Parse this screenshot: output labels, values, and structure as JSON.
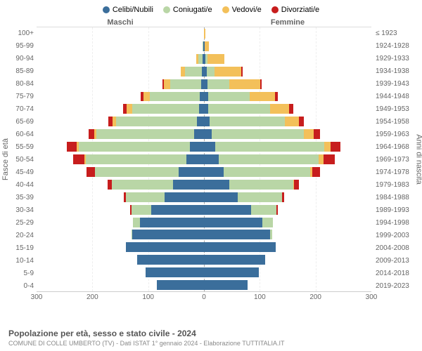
{
  "legend": [
    {
      "label": "Celibi/Nubili",
      "color": "#3b6e9b"
    },
    {
      "label": "Coniugati/e",
      "color": "#b9d6a6"
    },
    {
      "label": "Vedovi/e",
      "color": "#f3c05a"
    },
    {
      "label": "Divorziati/e",
      "color": "#c71d1d"
    }
  ],
  "headers": {
    "male": "Maschi",
    "female": "Femmine"
  },
  "y_label_left": "Fasce di età",
  "y_label_right": "Anni di nascita",
  "age_labels": [
    "100+",
    "95-99",
    "90-94",
    "85-89",
    "80-84",
    "75-79",
    "70-74",
    "65-69",
    "60-64",
    "55-59",
    "50-54",
    "45-49",
    "40-44",
    "35-39",
    "30-34",
    "25-29",
    "20-24",
    "15-19",
    "10-14",
    "5-9",
    "0-4"
  ],
  "birth_labels": [
    "≤ 1923",
    "1924-1928",
    "1929-1933",
    "1934-1938",
    "1939-1943",
    "1944-1948",
    "1949-1953",
    "1954-1958",
    "1959-1963",
    "1964-1968",
    "1969-1973",
    "1974-1978",
    "1979-1983",
    "1984-1988",
    "1989-1993",
    "1994-1998",
    "1999-2003",
    "2004-2008",
    "2009-2013",
    "2014-2018",
    "2019-2023"
  ],
  "x_max": 300,
  "x_ticks": [
    300,
    200,
    100,
    0,
    100,
    200,
    300
  ],
  "colors": {
    "celibi": "#3b6e9b",
    "coniugati": "#b9d6a6",
    "vedovi": "#f3c05a",
    "divorziati": "#c71d1d",
    "grid": "#eeeeee",
    "center": "#aaaaaa",
    "text": "#666666"
  },
  "rows": [
    {
      "m": {
        "c": 0,
        "co": 0,
        "v": 0,
        "d": 0
      },
      "f": {
        "c": 0,
        "co": 0,
        "v": 2,
        "d": 0
      }
    },
    {
      "m": {
        "c": 1,
        "co": 1,
        "v": 1,
        "d": 0
      },
      "f": {
        "c": 1,
        "co": 0,
        "v": 8,
        "d": 0
      }
    },
    {
      "m": {
        "c": 2,
        "co": 8,
        "v": 4,
        "d": 0
      },
      "f": {
        "c": 3,
        "co": 3,
        "v": 30,
        "d": 0
      }
    },
    {
      "m": {
        "c": 4,
        "co": 30,
        "v": 7,
        "d": 0
      },
      "f": {
        "c": 5,
        "co": 14,
        "v": 48,
        "d": 2
      }
    },
    {
      "m": {
        "c": 5,
        "co": 55,
        "v": 12,
        "d": 2
      },
      "f": {
        "c": 6,
        "co": 40,
        "v": 55,
        "d": 3
      }
    },
    {
      "m": {
        "c": 7,
        "co": 90,
        "v": 12,
        "d": 4
      },
      "f": {
        "c": 7,
        "co": 75,
        "v": 45,
        "d": 5
      }
    },
    {
      "m": {
        "c": 9,
        "co": 120,
        "v": 10,
        "d": 6
      },
      "f": {
        "c": 8,
        "co": 110,
        "v": 35,
        "d": 7
      }
    },
    {
      "m": {
        "c": 12,
        "co": 145,
        "v": 7,
        "d": 8
      },
      "f": {
        "c": 10,
        "co": 135,
        "v": 25,
        "d": 9
      }
    },
    {
      "m": {
        "c": 18,
        "co": 175,
        "v": 4,
        "d": 10
      },
      "f": {
        "c": 14,
        "co": 165,
        "v": 18,
        "d": 11
      }
    },
    {
      "m": {
        "c": 25,
        "co": 200,
        "v": 3,
        "d": 18
      },
      "f": {
        "c": 20,
        "co": 195,
        "v": 12,
        "d": 18
      }
    },
    {
      "m": {
        "c": 32,
        "co": 180,
        "v": 2,
        "d": 20
      },
      "f": {
        "c": 26,
        "co": 180,
        "v": 8,
        "d": 20
      }
    },
    {
      "m": {
        "c": 45,
        "co": 150,
        "v": 1,
        "d": 14
      },
      "f": {
        "c": 35,
        "co": 155,
        "v": 4,
        "d": 14
      }
    },
    {
      "m": {
        "c": 55,
        "co": 110,
        "v": 0,
        "d": 8
      },
      "f": {
        "c": 45,
        "co": 115,
        "v": 2,
        "d": 8
      }
    },
    {
      "m": {
        "c": 70,
        "co": 70,
        "v": 0,
        "d": 4
      },
      "f": {
        "c": 60,
        "co": 80,
        "v": 0,
        "d": 4
      }
    },
    {
      "m": {
        "c": 95,
        "co": 35,
        "v": 0,
        "d": 2
      },
      "f": {
        "c": 85,
        "co": 45,
        "v": 0,
        "d": 2
      }
    },
    {
      "m": {
        "c": 115,
        "co": 12,
        "v": 0,
        "d": 0
      },
      "f": {
        "c": 105,
        "co": 18,
        "v": 0,
        "d": 0
      }
    },
    {
      "m": {
        "c": 128,
        "co": 2,
        "v": 0,
        "d": 0
      },
      "f": {
        "c": 118,
        "co": 4,
        "v": 0,
        "d": 0
      }
    },
    {
      "m": {
        "c": 140,
        "co": 0,
        "v": 0,
        "d": 0
      },
      "f": {
        "c": 128,
        "co": 0,
        "v": 0,
        "d": 0
      }
    },
    {
      "m": {
        "c": 120,
        "co": 0,
        "v": 0,
        "d": 0
      },
      "f": {
        "c": 110,
        "co": 0,
        "v": 0,
        "d": 0
      }
    },
    {
      "m": {
        "c": 105,
        "co": 0,
        "v": 0,
        "d": 0
      },
      "f": {
        "c": 98,
        "co": 0,
        "v": 0,
        "d": 0
      }
    },
    {
      "m": {
        "c": 85,
        "co": 0,
        "v": 0,
        "d": 0
      },
      "f": {
        "c": 78,
        "co": 0,
        "v": 0,
        "d": 0
      }
    }
  ],
  "title": "Popolazione per età, sesso e stato civile - 2024",
  "subtitle": "COMUNE DI COLLE UMBERTO (TV) - Dati ISTAT 1° gennaio 2024 - Elaborazione TUTTITALIA.IT"
}
